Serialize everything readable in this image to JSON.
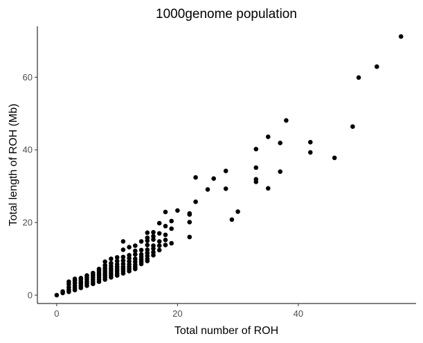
{
  "chart_data": {
    "type": "scatter",
    "title": "1000genome population",
    "xlabel": "Total number of ROH",
    "ylabel": "Total length of ROH (Mb)",
    "xlim": [
      -3.2,
      59.5
    ],
    "ylim": [
      -2.3,
      74.0
    ],
    "x_ticks": [
      0,
      20,
      40
    ],
    "y_ticks": [
      0,
      20,
      40,
      60
    ],
    "grid": false,
    "legend": "none",
    "point_color": "#000000",
    "points": [
      [
        0,
        0
      ],
      [
        1,
        0.6
      ],
      [
        1,
        1.0
      ],
      [
        2,
        0.9
      ],
      [
        2,
        1.5
      ],
      [
        2,
        2.2
      ],
      [
        2,
        3.0
      ],
      [
        2,
        3.7
      ],
      [
        3,
        1.4
      ],
      [
        3,
        2.0
      ],
      [
        3,
        2.6
      ],
      [
        3,
        3.3
      ],
      [
        3,
        4.0
      ],
      [
        3,
        4.5
      ],
      [
        4,
        2.0
      ],
      [
        4,
        2.5
      ],
      [
        4,
        3.1
      ],
      [
        4,
        3.6
      ],
      [
        4,
        4.2
      ],
      [
        4,
        4.7
      ],
      [
        5,
        2.6
      ],
      [
        5,
        3.2
      ],
      [
        5,
        3.7
      ],
      [
        5,
        4.3
      ],
      [
        5,
        4.8
      ],
      [
        5,
        5.4
      ],
      [
        6,
        3.1
      ],
      [
        6,
        3.7
      ],
      [
        6,
        4.3
      ],
      [
        6,
        4.9
      ],
      [
        6,
        5.5
      ],
      [
        6,
        6.1
      ],
      [
        7,
        3.7
      ],
      [
        7,
        4.3
      ],
      [
        7,
        4.9
      ],
      [
        7,
        5.5
      ],
      [
        7,
        6.1
      ],
      [
        7,
        6.7
      ],
      [
        7,
        7.2
      ],
      [
        8,
        4.3
      ],
      [
        8,
        4.9
      ],
      [
        8,
        5.5
      ],
      [
        8,
        6.1
      ],
      [
        8,
        6.7
      ],
      [
        8,
        7.4
      ],
      [
        8,
        8.2
      ],
      [
        8,
        9.2
      ],
      [
        9,
        4.9
      ],
      [
        9,
        5.5
      ],
      [
        9,
        6.1
      ],
      [
        9,
        6.7
      ],
      [
        9,
        7.3
      ],
      [
        9,
        8.0
      ],
      [
        9,
        8.8
      ],
      [
        9,
        10.0
      ],
      [
        10,
        5.4
      ],
      [
        10,
        6.0
      ],
      [
        10,
        6.6
      ],
      [
        10,
        7.2
      ],
      [
        10,
        7.8
      ],
      [
        10,
        8.5
      ],
      [
        10,
        9.4
      ],
      [
        10,
        10.4
      ],
      [
        11,
        6.0
      ],
      [
        11,
        6.6
      ],
      [
        11,
        7.2
      ],
      [
        11,
        7.8
      ],
      [
        11,
        8.6
      ],
      [
        11,
        9.5
      ],
      [
        11,
        10.5
      ],
      [
        11,
        12.5
      ],
      [
        11,
        14.8
      ],
      [
        12,
        6.6
      ],
      [
        12,
        7.2
      ],
      [
        12,
        7.8
      ],
      [
        12,
        8.5
      ],
      [
        12,
        9.3
      ],
      [
        12,
        10.2
      ],
      [
        12,
        11.0
      ],
      [
        12,
        13.2
      ],
      [
        13,
        7.2
      ],
      [
        13,
        7.8
      ],
      [
        13,
        8.4
      ],
      [
        13,
        9.2
      ],
      [
        13,
        10.0
      ],
      [
        13,
        11.2
      ],
      [
        13,
        12.2
      ],
      [
        13,
        13.6
      ],
      [
        14,
        8.6
      ],
      [
        14,
        9.2
      ],
      [
        14,
        9.8
      ],
      [
        14,
        10.5
      ],
      [
        14,
        11.2
      ],
      [
        14,
        12.4
      ],
      [
        14,
        14.8
      ],
      [
        15,
        9.4
      ],
      [
        15,
        10.0
      ],
      [
        15,
        10.8
      ],
      [
        15,
        11.6
      ],
      [
        15,
        12.5
      ],
      [
        15,
        13.8
      ],
      [
        15,
        15.0
      ],
      [
        15,
        15.8
      ],
      [
        15,
        17.2
      ],
      [
        16,
        11.0
      ],
      [
        16,
        11.8
      ],
      [
        16,
        12.8
      ],
      [
        16,
        13.6
      ],
      [
        16,
        15.3
      ],
      [
        16,
        16.2
      ],
      [
        16,
        17.3
      ],
      [
        17,
        12.4
      ],
      [
        17,
        13.6
      ],
      [
        17,
        14.8
      ],
      [
        17,
        17.0
      ],
      [
        17,
        19.8
      ],
      [
        18,
        13.8
      ],
      [
        18,
        15.2
      ],
      [
        18,
        16.6
      ],
      [
        18,
        19.0
      ],
      [
        18,
        22.9
      ],
      [
        19,
        14.3
      ],
      [
        19,
        18.3
      ],
      [
        19,
        20.4
      ],
      [
        20,
        23.3
      ],
      [
        22,
        16.0
      ],
      [
        22,
        20.1
      ],
      [
        22,
        22.2
      ],
      [
        22,
        22.5
      ],
      [
        23,
        25.7
      ],
      [
        23,
        32.4
      ],
      [
        25,
        29.1
      ],
      [
        26,
        32.1
      ],
      [
        28,
        29.3
      ],
      [
        28,
        34.2
      ],
      [
        29,
        20.8
      ],
      [
        30,
        23.0
      ],
      [
        33,
        31.2
      ],
      [
        33,
        31.9
      ],
      [
        33,
        35.1
      ],
      [
        33,
        40.2
      ],
      [
        35,
        29.4
      ],
      [
        35,
        43.6
      ],
      [
        37,
        34.0
      ],
      [
        37,
        41.9
      ],
      [
        38,
        48.1
      ],
      [
        42,
        39.3
      ],
      [
        42,
        42.1
      ],
      [
        46,
        37.8
      ],
      [
        49,
        46.4
      ],
      [
        50,
        59.9
      ],
      [
        53,
        62.9
      ],
      [
        57,
        71.2
      ]
    ]
  }
}
